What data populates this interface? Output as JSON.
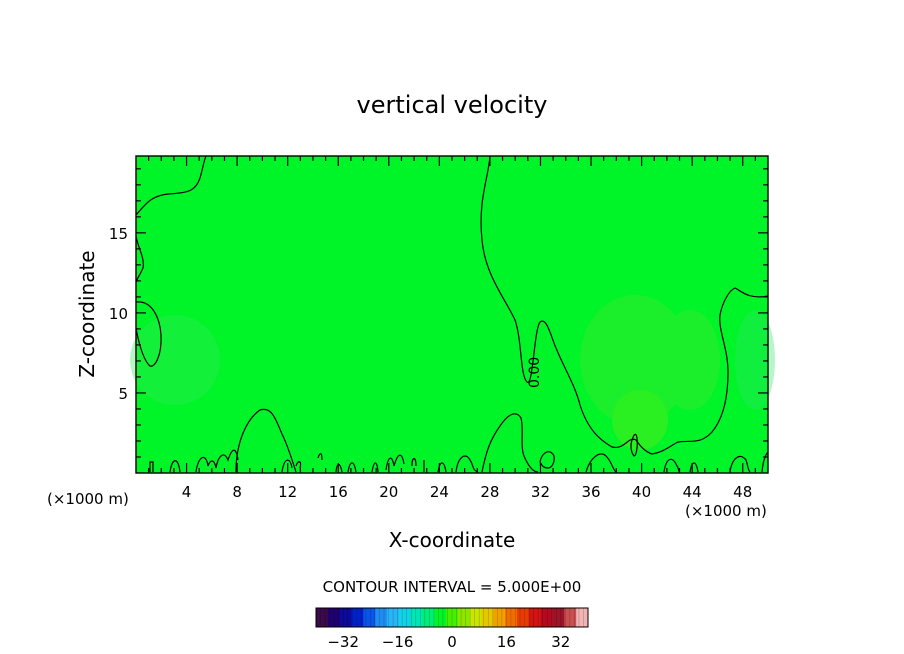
{
  "chart_data": {
    "type": "heatmap",
    "title": "vertical velocity",
    "xlabel": "X-coordinate",
    "ylabel": "Z-coordinate",
    "x_unit_left": "(×1000 m)",
    "x_unit_right": "(×1000 m)",
    "xlim": [
      0,
      50
    ],
    "ylim": [
      0,
      19.8
    ],
    "xticks": [
      4,
      8,
      12,
      16,
      20,
      24,
      28,
      32,
      36,
      40,
      44,
      48
    ],
    "yticks": [
      5,
      10,
      15
    ],
    "field_color": "#00f528",
    "contour_label": "0.00",
    "contour_interval_text": "CONTOUR INTERVAL = 5.000E+00",
    "colorbar": {
      "min": -40,
      "max": 40,
      "ticks": [
        -32,
        -16,
        0,
        16,
        32
      ],
      "colors": [
        "#3a0a4a",
        "#20006e",
        "#0c0a96",
        "#0020c8",
        "#0a55e6",
        "#1e8cf0",
        "#28b4f5",
        "#14d2e6",
        "#00e6b4",
        "#00ee78",
        "#00f528",
        "#46f000",
        "#8ce600",
        "#c8e600",
        "#e6c800",
        "#f0a000",
        "#f06e00",
        "#e63c00",
        "#d21414",
        "#b40a1e",
        "#9b1428",
        "#c85050",
        "#f0b4b4"
      ]
    }
  }
}
